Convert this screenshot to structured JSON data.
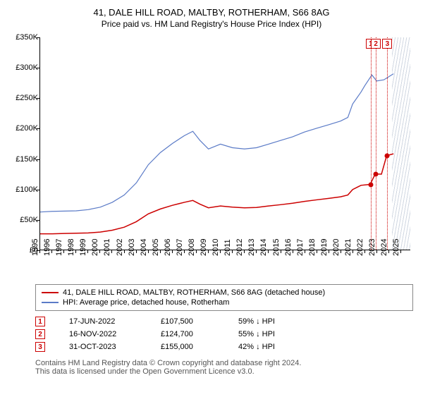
{
  "title": "41, DALE HILL ROAD, MALTBY, ROTHERHAM, S66 8AG",
  "subtitle": "Price paid vs. HM Land Registry's House Price Index (HPI)",
  "chart": {
    "type": "line",
    "background_color": "#ffffff",
    "axis_color": "#000000",
    "xlim": [
      1995,
      2025.8
    ],
    "ylim": [
      0,
      350000
    ],
    "ytick_step": 50000,
    "yticks": [
      "£0",
      "£50K",
      "£100K",
      "£150K",
      "£200K",
      "£250K",
      "£300K",
      "£350K"
    ],
    "xticks": [
      "1995",
      "1996",
      "1997",
      "1998",
      "1999",
      "2000",
      "2001",
      "2002",
      "2003",
      "2004",
      "2005",
      "2006",
      "2007",
      "2008",
      "2009",
      "2010",
      "2011",
      "2012",
      "2013",
      "2014",
      "2015",
      "2016",
      "2017",
      "2018",
      "2019",
      "2020",
      "2021",
      "2022",
      "2023",
      "2024",
      "2025"
    ],
    "hatch_from_x": 2024.2,
    "hatch_color": "rgba(120,140,170,0.35)",
    "series": [
      {
        "name": "hpi",
        "label": "HPI: Average price, detached house, Rotherham",
        "color": "#5b7bc7",
        "line_width": 1.2,
        "points": [
          [
            1995,
            62000
          ],
          [
            1996,
            63000
          ],
          [
            1997,
            63500
          ],
          [
            1998,
            64000
          ],
          [
            1999,
            66000
          ],
          [
            2000,
            70000
          ],
          [
            2001,
            78000
          ],
          [
            2002,
            90000
          ],
          [
            2003,
            110000
          ],
          [
            2004,
            140000
          ],
          [
            2005,
            160000
          ],
          [
            2006,
            175000
          ],
          [
            2007,
            188000
          ],
          [
            2007.7,
            195000
          ],
          [
            2008.3,
            180000
          ],
          [
            2009,
            166000
          ],
          [
            2010,
            174000
          ],
          [
            2011,
            168000
          ],
          [
            2012,
            166000
          ],
          [
            2013,
            168000
          ],
          [
            2014,
            174000
          ],
          [
            2015,
            180000
          ],
          [
            2016,
            186000
          ],
          [
            2017,
            194000
          ],
          [
            2018,
            200000
          ],
          [
            2019,
            206000
          ],
          [
            2020,
            212000
          ],
          [
            2020.6,
            218000
          ],
          [
            2021,
            240000
          ],
          [
            2021.7,
            260000
          ],
          [
            2022,
            270000
          ],
          [
            2022.6,
            288000
          ],
          [
            2023,
            278000
          ],
          [
            2023.6,
            280000
          ],
          [
            2024,
            285000
          ],
          [
            2024.4,
            290000
          ]
        ]
      },
      {
        "name": "property",
        "label": "41, DALE HILL ROAD, MALTBY, ROTHERHAM, S66 8AG (detached house)",
        "color": "#cc0000",
        "line_width": 1.5,
        "points": [
          [
            1995,
            26000
          ],
          [
            1996,
            26000
          ],
          [
            1997,
            26500
          ],
          [
            1998,
            27000
          ],
          [
            1999,
            27500
          ],
          [
            2000,
            29000
          ],
          [
            2001,
            32000
          ],
          [
            2002,
            37000
          ],
          [
            2003,
            46000
          ],
          [
            2004,
            59000
          ],
          [
            2005,
            67000
          ],
          [
            2006,
            73000
          ],
          [
            2007,
            78000
          ],
          [
            2007.7,
            81000
          ],
          [
            2008.3,
            75000
          ],
          [
            2009,
            69000
          ],
          [
            2010,
            72000
          ],
          [
            2011,
            70000
          ],
          [
            2012,
            69000
          ],
          [
            2013,
            69500
          ],
          [
            2014,
            72000
          ],
          [
            2015,
            74000
          ],
          [
            2016,
            76500
          ],
          [
            2017,
            79500
          ],
          [
            2018,
            82000
          ],
          [
            2019,
            84500
          ],
          [
            2020,
            87000
          ],
          [
            2020.6,
            90000
          ],
          [
            2021,
            99000
          ],
          [
            2021.7,
            106000
          ],
          [
            2022.46,
            107500
          ],
          [
            2022.88,
            124700
          ],
          [
            2023.4,
            124500
          ],
          [
            2023.83,
            155000
          ],
          [
            2024.4,
            158000
          ]
        ],
        "markers": [
          {
            "id": "1",
            "x": 2022.46,
            "y": 107500
          },
          {
            "id": "2",
            "x": 2022.88,
            "y": 124700
          },
          {
            "id": "3",
            "x": 2023.83,
            "y": 155000
          }
        ]
      }
    ],
    "top_marker_boxes": [
      {
        "id": "1",
        "x": 2022.46
      },
      {
        "id": "2",
        "x": 2022.88
      },
      {
        "id": "3",
        "x": 2023.83
      }
    ]
  },
  "legend": {
    "items": [
      {
        "color": "#cc0000",
        "label": "41, DALE HILL ROAD, MALTBY, ROTHERHAM, S66 8AG (detached house)"
      },
      {
        "color": "#5b7bc7",
        "label": "HPI: Average price, detached house, Rotherham"
      }
    ]
  },
  "points_table": {
    "rows": [
      {
        "id": "1",
        "date": "17-JUN-2022",
        "price": "£107,500",
        "diff": "59% ↓ HPI"
      },
      {
        "id": "2",
        "date": "16-NOV-2022",
        "price": "£124,700",
        "diff": "55% ↓ HPI"
      },
      {
        "id": "3",
        "date": "31-OCT-2023",
        "price": "£155,000",
        "diff": "42% ↓ HPI"
      }
    ]
  },
  "footer": {
    "line1": "Contains HM Land Registry data © Crown copyright and database right 2024.",
    "line2": "This data is licensed under the Open Government Licence v3.0."
  }
}
